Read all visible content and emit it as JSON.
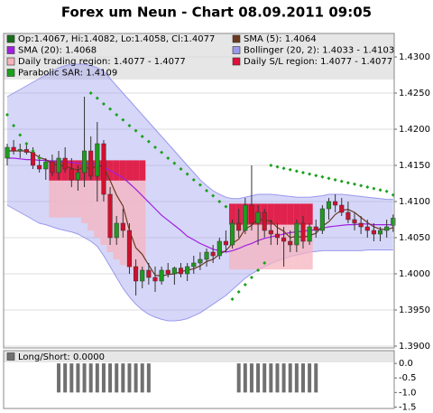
{
  "chart_data": [
    {
      "type": "candlestick",
      "title": "Forex um Neun - Chart 08.09.2011 09:05",
      "up_color": "#1f9a1f",
      "down_color": "#d0102e",
      "ylim": [
        1.38975,
        1.43325
      ],
      "yticks": [
        {
          "value": 1.39,
          "label": "1.3900"
        },
        {
          "value": 1.395,
          "label": "1.3950"
        },
        {
          "value": 1.4,
          "label": "1.4000"
        },
        {
          "value": 1.405,
          "label": "1.4050"
        },
        {
          "value": 1.41,
          "label": "1.4100"
        },
        {
          "value": 1.415,
          "label": "1.4150"
        },
        {
          "value": 1.42,
          "label": "1.4200"
        },
        {
          "value": 1.425,
          "label": "1.4250"
        },
        {
          "value": 1.43,
          "label": "1.4300"
        }
      ],
      "grid": true,
      "series": [
        {
          "name": "Op:1.4067, Hi:1.4082, Lo:1.4058, Cl:1.4077",
          "color": "#1a6e1a",
          "open": [
            1.416,
            1.4175,
            1.417,
            1.4172,
            1.4168,
            1.415,
            1.4145,
            1.4155,
            1.414,
            1.416,
            1.4145,
            1.413,
            1.414,
            1.417,
            1.4135,
            1.418,
            1.411,
            1.405,
            1.407,
            1.406,
            1.401,
            1.399,
            1.4005,
            1.3995,
            1.399,
            1.4005,
            1.4,
            1.4008,
            1.4,
            1.401,
            1.4015,
            1.402,
            1.403,
            1.4025,
            1.4045,
            1.404,
            1.407,
            1.406,
            1.4095,
            1.407,
            1.4085,
            1.406,
            1.4055,
            1.405,
            1.4045,
            1.404,
            1.407,
            1.4045,
            1.4065,
            1.406,
            1.409,
            1.41,
            1.4095,
            1.4085,
            1.4075,
            1.407,
            1.4065,
            1.406,
            1.4055,
            1.406,
            1.4067
          ],
          "high": [
            1.418,
            1.4185,
            1.418,
            1.4182,
            1.4175,
            1.4165,
            1.416,
            1.4165,
            1.417,
            1.4175,
            1.416,
            1.415,
            1.4245,
            1.419,
            1.421,
            1.4185,
            1.412,
            1.408,
            1.409,
            1.407,
            1.402,
            1.401,
            1.4015,
            1.401,
            1.401,
            1.4015,
            1.401,
            1.4015,
            1.4015,
            1.4025,
            1.403,
            1.4035,
            1.404,
            1.405,
            1.406,
            1.4075,
            1.409,
            1.4105,
            1.415,
            1.4095,
            1.409,
            1.4075,
            1.407,
            1.4065,
            1.406,
            1.4075,
            1.408,
            1.407,
            1.4075,
            1.4095,
            1.4105,
            1.411,
            1.4105,
            1.41,
            1.4085,
            1.408,
            1.4075,
            1.407,
            1.4065,
            1.4075,
            1.4082
          ],
          "low": [
            1.415,
            1.4165,
            1.416,
            1.4165,
            1.4145,
            1.414,
            1.413,
            1.4135,
            1.413,
            1.414,
            1.412,
            1.4115,
            1.412,
            1.413,
            1.41,
            1.41,
            1.404,
            1.404,
            1.405,
            1.4,
            1.397,
            1.398,
            1.3985,
            1.3975,
            1.3985,
            1.3995,
            1.3985,
            1.3995,
            1.399,
            1.4,
            1.4005,
            1.401,
            1.4015,
            1.402,
            1.403,
            1.4035,
            1.405,
            1.4055,
            1.406,
            1.404,
            1.405,
            1.404,
            1.404,
            1.401,
            1.403,
            1.403,
            1.4035,
            1.404,
            1.405,
            1.4055,
            1.4075,
            1.4085,
            1.408,
            1.407,
            1.406,
            1.4055,
            1.405,
            1.4045,
            1.4045,
            1.405,
            1.4058
          ],
          "close": [
            1.4175,
            1.417,
            1.4172,
            1.4168,
            1.415,
            1.4145,
            1.4155,
            1.414,
            1.416,
            1.4145,
            1.413,
            1.414,
            1.417,
            1.4135,
            1.418,
            1.411,
            1.405,
            1.407,
            1.406,
            1.401,
            1.399,
            1.4005,
            1.3995,
            1.399,
            1.4005,
            1.4,
            1.4008,
            1.4,
            1.401,
            1.4015,
            1.402,
            1.403,
            1.4025,
            1.4045,
            1.404,
            1.407,
            1.406,
            1.4095,
            1.407,
            1.4085,
            1.406,
            1.4055,
            1.405,
            1.4045,
            1.404,
            1.407,
            1.4045,
            1.4065,
            1.406,
            1.409,
            1.41,
            1.4095,
            1.4085,
            1.4075,
            1.407,
            1.4065,
            1.406,
            1.4055,
            1.406,
            1.4065,
            1.4077
          ]
        },
        {
          "name": "SMA (5): 1.4064",
          "color": "#6b3a1f",
          "values": [
            1.417,
            1.417,
            1.417,
            1.417,
            1.4167,
            1.4161,
            1.4158,
            1.4152,
            1.415,
            1.4149,
            1.4146,
            1.4143,
            1.4149,
            1.4144,
            1.4151,
            1.4147,
            1.4129,
            1.4109,
            1.4094,
            1.406,
            1.4036,
            1.4027,
            1.4012,
            1.3998,
            1.3997,
            1.3999,
            1.4,
            1.4003,
            1.4005,
            1.4007,
            1.4011,
            1.4017,
            1.402,
            1.4027,
            1.4032,
            1.4042,
            1.4048,
            1.4062,
            1.4067,
            1.4076,
            1.4074,
            1.4073,
            1.4064,
            1.4059,
            1.405,
            1.4052,
            1.405,
            1.4053,
            1.4056,
            1.4066,
            1.4072,
            1.4082,
            1.4088,
            1.4089,
            1.4085,
            1.4078,
            1.4071,
            1.4065,
            1.4062,
            1.4061,
            1.4064
          ]
        },
        {
          "name": "SMA (20): 1.4068",
          "color": "#a020e0",
          "values": [
            1.416,
            1.416,
            1.4159,
            1.4158,
            1.4158,
            1.4157,
            1.4157,
            1.4156,
            1.4156,
            1.4155,
            1.4154,
            1.4153,
            1.4153,
            1.4152,
            1.4152,
            1.4148,
            1.4143,
            1.4138,
            1.4133,
            1.4125,
            1.4117,
            1.4108,
            1.4099,
            1.409,
            1.4081,
            1.4074,
            1.4067,
            1.406,
            1.4052,
            1.4047,
            1.4042,
            1.4038,
            1.4034,
            1.4032,
            1.403,
            1.4032,
            1.4035,
            1.4039,
            1.4042,
            1.4046,
            1.4049,
            1.4051,
            1.4053,
            1.4055,
            1.4057,
            1.4058,
            1.4059,
            1.406,
            1.4061,
            1.4063,
            1.4065,
            1.4066,
            1.4067,
            1.4068,
            1.4068,
            1.4069,
            1.4069,
            1.4068,
            1.4068,
            1.4068,
            1.4068
          ]
        },
        {
          "name": "Bollinger (20, 2): 1.4033 - 1.4103",
          "color": "#9999ee",
          "upper": [
            1.4245,
            1.425,
            1.4255,
            1.426,
            1.4265,
            1.427,
            1.4275,
            1.428,
            1.4285,
            1.4288,
            1.429,
            1.429,
            1.429,
            1.4288,
            1.4285,
            1.428,
            1.427,
            1.426,
            1.425,
            1.424,
            1.423,
            1.422,
            1.421,
            1.42,
            1.419,
            1.418,
            1.417,
            1.416,
            1.415,
            1.414,
            1.413,
            1.4122,
            1.4115,
            1.411,
            1.4106,
            1.4104,
            1.4104,
            1.4106,
            1.4108,
            1.411,
            1.411,
            1.411,
            1.4109,
            1.4108,
            1.4107,
            1.4106,
            1.4106,
            1.4106,
            1.4107,
            1.4108,
            1.411,
            1.411,
            1.411,
            1.4109,
            1.4108,
            1.4107,
            1.4106,
            1.4105,
            1.4104,
            1.4103,
            1.4103
          ],
          "lower": [
            1.4095,
            1.409,
            1.4085,
            1.408,
            1.4075,
            1.407,
            1.4068,
            1.4065,
            1.4062,
            1.406,
            1.4058,
            1.4055,
            1.405,
            1.4045,
            1.4038,
            1.4025,
            1.401,
            1.3995,
            1.398,
            1.3968,
            1.3958,
            1.395,
            1.3944,
            1.394,
            1.3937,
            1.3935,
            1.3935,
            1.3936,
            1.3938,
            1.3942,
            1.3946,
            1.3952,
            1.3958,
            1.3964,
            1.397,
            1.3978,
            1.3986,
            1.3994,
            1.4,
            1.4005,
            1.401,
            1.4014,
            1.4018,
            1.4021,
            1.4024,
            1.4026,
            1.4028,
            1.403,
            1.4031,
            1.4032,
            1.4032,
            1.4032,
            1.4032,
            1.4032,
            1.4032,
            1.4032,
            1.4033,
            1.4033,
            1.4033,
            1.4033,
            1.4033
          ]
        },
        {
          "name": "Daily trading region: 1.4077 - 1.4077",
          "color": "#f5b3bd",
          "high": [
            null,
            null,
            null,
            null,
            null,
            null,
            null,
            1.4129,
            1.4129,
            1.4129,
            1.4129,
            1.4129,
            1.4129,
            1.4129,
            1.4129,
            1.4129,
            1.4129,
            1.4129,
            1.4129,
            1.4129,
            1.4129,
            1.4129,
            null,
            null,
            null,
            null,
            null,
            null,
            null,
            null,
            null,
            null,
            null,
            null,
            null,
            1.4068,
            1.4068,
            1.4068,
            1.4068,
            1.4068,
            1.4068,
            1.4068,
            1.4068,
            1.4068,
            1.4068,
            1.4068,
            1.4068,
            1.4068,
            null,
            null,
            null,
            null,
            null,
            null,
            null,
            null,
            null,
            null,
            null,
            null,
            null
          ],
          "low": [
            null,
            null,
            null,
            null,
            null,
            null,
            null,
            1.4078,
            1.4078,
            1.4078,
            1.4078,
            1.4078,
            1.407,
            1.406,
            1.405,
            1.404,
            1.403,
            1.402,
            1.4012,
            1.4008,
            1.4005,
            1.4005,
            null,
            null,
            null,
            null,
            null,
            null,
            null,
            null,
            null,
            null,
            null,
            null,
            null,
            1.4006,
            1.4006,
            1.4006,
            1.4006,
            1.4006,
            1.4006,
            1.4006,
            1.4006,
            1.4006,
            1.4006,
            1.4006,
            1.4006,
            1.4006,
            null,
            null,
            null,
            null,
            null,
            null,
            null,
            null,
            null,
            null,
            null,
            null,
            null
          ]
        },
        {
          "name": "Daily S/L region: 1.4077 - 1.4077",
          "color": "#e0103a",
          "high": [
            null,
            null,
            null,
            null,
            null,
            null,
            null,
            1.4157,
            1.4157,
            1.4157,
            1.4157,
            1.4157,
            1.4157,
            1.4157,
            1.4157,
            1.4157,
            1.4157,
            1.4157,
            1.4157,
            1.4157,
            1.4157,
            1.4157,
            null,
            null,
            null,
            null,
            null,
            null,
            null,
            null,
            null,
            null,
            null,
            null,
            null,
            1.4097,
            1.4097,
            1.4097,
            1.4097,
            1.4097,
            1.4097,
            1.4097,
            1.4097,
            1.4097,
            1.4097,
            1.4097,
            1.4097,
            1.4097,
            null,
            null,
            null,
            null,
            null,
            null,
            null,
            null,
            null,
            null,
            null,
            null,
            null
          ],
          "low": [
            null,
            null,
            null,
            null,
            null,
            null,
            null,
            1.4129,
            1.4129,
            1.4129,
            1.4129,
            1.4129,
            1.4129,
            1.4129,
            1.4129,
            1.4129,
            1.4129,
            1.4129,
            1.4129,
            1.4129,
            1.4129,
            1.4129,
            null,
            null,
            null,
            null,
            null,
            null,
            null,
            null,
            null,
            null,
            null,
            null,
            null,
            1.4068,
            1.4068,
            1.4068,
            1.4068,
            1.4068,
            1.4068,
            1.4068,
            1.4068,
            1.4068,
            1.4068,
            1.4068,
            1.4068,
            1.4068,
            null,
            null,
            null,
            null,
            null,
            null,
            null,
            null,
            null,
            null,
            null,
            null,
            null
          ]
        },
        {
          "name": "Parabolic SAR: 1.4109",
          "color": "#1aa01a",
          "values": [
            1.422,
            1.4205,
            1.4192,
            1.418,
            1.417,
            1.416,
            1.4152,
            null,
            null,
            null,
            null,
            null,
            null,
            1.425,
            1.4243,
            1.4235,
            1.4228,
            1.422,
            1.4213,
            1.4205,
            1.4198,
            1.419,
            1.4183,
            1.4175,
            1.4168,
            1.416,
            1.4153,
            1.4145,
            1.4138,
            1.413,
            1.4123,
            1.4115,
            1.4108,
            1.41,
            1.4093,
            1.3965,
            1.3975,
            1.3985,
            1.3995,
            1.4005,
            1.4015,
            1.415,
            1.4148,
            1.4146,
            1.4144,
            1.4142,
            1.414,
            1.4138,
            1.4136,
            1.4134,
            1.4132,
            1.413,
            1.4128,
            1.4126,
            1.4124,
            1.4122,
            1.412,
            1.4118,
            1.4116,
            1.4114,
            1.4109
          ]
        }
      ]
    },
    {
      "type": "bar",
      "ylim": [
        -1.55,
        0.44
      ],
      "yticks": [
        {
          "value": 0,
          "label": "0.0"
        },
        {
          "value": -0.5,
          "label": "-0.5"
        },
        {
          "value": -1,
          "label": "-1.0"
        },
        {
          "value": -1.5,
          "label": "-1.5"
        }
      ],
      "series": [
        {
          "name": "Long/Short: 0.0000",
          "color": "#707070",
          "values": [
            0,
            0,
            0,
            0,
            0,
            0,
            0,
            0,
            -1,
            -1,
            -1,
            -1,
            -1,
            -1,
            -1,
            -1,
            -1,
            -1,
            -1,
            -1,
            -1,
            -1,
            -1,
            0,
            0,
            0,
            0,
            0,
            0,
            0,
            0,
            0,
            0,
            0,
            0,
            0,
            -1,
            -1,
            -1,
            -1,
            -1,
            -1,
            -1,
            -1,
            -1,
            -1,
            -1,
            -1,
            -1,
            0,
            0,
            0,
            0,
            0,
            0,
            0,
            0,
            0,
            0,
            0,
            0
          ]
        }
      ]
    }
  ]
}
